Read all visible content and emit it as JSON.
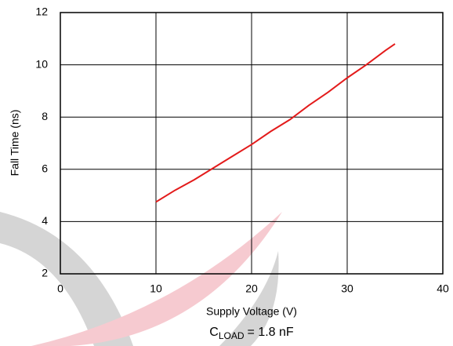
{
  "chart_data": {
    "type": "line",
    "x_label": "Supply Voltage (V)",
    "y_label": "Fall Time (ns)",
    "annotation": {
      "symbol": "C",
      "subscript": "LOAD",
      "text": "= 1.8 nF"
    },
    "x": [
      10,
      12,
      14,
      16,
      18,
      20,
      22,
      24,
      26,
      28,
      30,
      32,
      34,
      35
    ],
    "series": [
      {
        "color": "#e31b1b",
        "values": [
          4.75,
          5.2,
          5.6,
          6.05,
          6.5,
          6.95,
          7.45,
          7.9,
          8.45,
          8.95,
          9.5,
          10.0,
          10.55,
          10.8
        ]
      }
    ],
    "xlim": [
      0,
      40
    ],
    "xticks": [
      0,
      10,
      20,
      30,
      40
    ],
    "ylim": [
      2,
      12
    ],
    "yticks": [
      2,
      4,
      6,
      8,
      10,
      12
    ],
    "grid": true
  }
}
